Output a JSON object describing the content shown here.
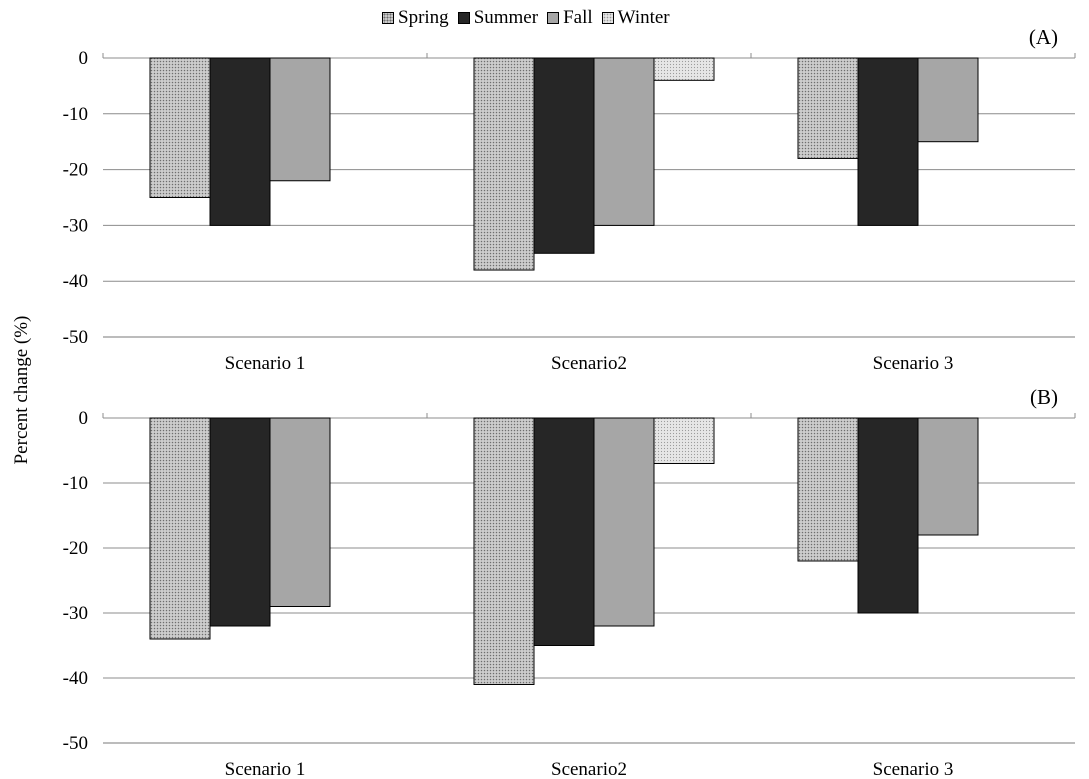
{
  "legend": {
    "spring": "Spring",
    "summer": "Summer",
    "fall": "Fall",
    "winter": "Winter"
  },
  "ylabel": "Percent change (%)",
  "colors": {
    "spring": "#c9c9c9",
    "summer": "#262626",
    "fall": "#a6a6a6",
    "winter": "#e4e4e4"
  },
  "chart_data": [
    {
      "type": "bar",
      "panel_label": "(A)",
      "categories": [
        "Scenario 1",
        "Scenario2",
        "Scenario 3"
      ],
      "series": [
        {
          "name": "Spring",
          "values": [
            -25,
            -38,
            -18
          ]
        },
        {
          "name": "Summer",
          "values": [
            -30,
            -35,
            -30
          ]
        },
        {
          "name": "Fall",
          "values": [
            -22,
            -30,
            -15
          ]
        },
        {
          "name": "Winter",
          "values": [
            0,
            -4,
            0
          ]
        }
      ],
      "yticks": [
        0,
        -10,
        -20,
        -30,
        -40,
        -50
      ],
      "ylim": [
        -50,
        0
      ],
      "ylabel": "Percent change (%)",
      "grid": true,
      "legend_position": "top"
    },
    {
      "type": "bar",
      "panel_label": "(B)",
      "categories": [
        "Scenario 1",
        "Scenario2",
        "Scenario 3"
      ],
      "series": [
        {
          "name": "Spring",
          "values": [
            -34,
            -41,
            -22
          ]
        },
        {
          "name": "Summer",
          "values": [
            -32,
            -35,
            -30
          ]
        },
        {
          "name": "Fall",
          "values": [
            -29,
            -32,
            -18
          ]
        },
        {
          "name": "Winter",
          "values": [
            0,
            -7,
            0
          ]
        }
      ],
      "yticks": [
        0,
        -10,
        -20,
        -30,
        -40,
        -50
      ],
      "ylim": [
        -50,
        0
      ],
      "ylabel": "Percent change (%)",
      "grid": true,
      "legend_position": "top"
    }
  ]
}
